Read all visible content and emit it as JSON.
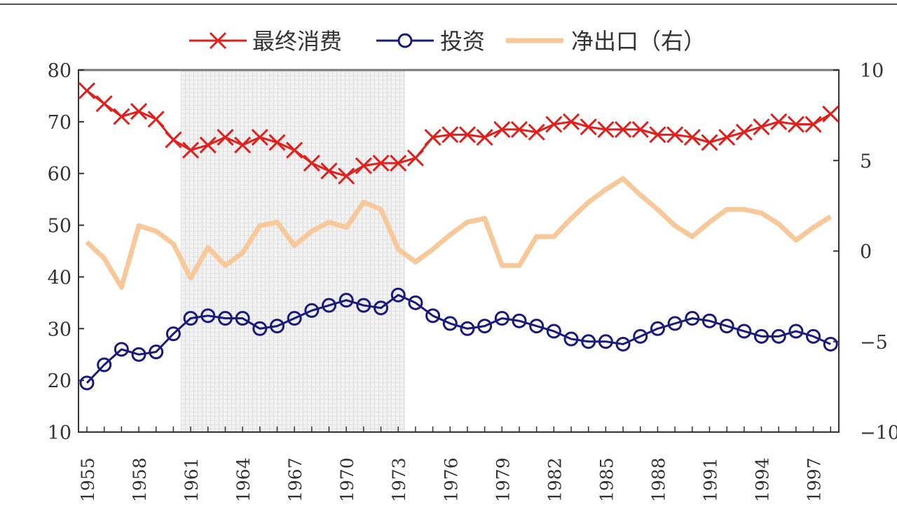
{
  "chart_data": {
    "type": "line",
    "title": "",
    "x": [
      1955,
      1956,
      1957,
      1958,
      1959,
      1960,
      1961,
      1962,
      1963,
      1964,
      1965,
      1966,
      1967,
      1968,
      1969,
      1970,
      1971,
      1972,
      1973,
      1974,
      1975,
      1976,
      1977,
      1978,
      1979,
      1980,
      1981,
      1982,
      1983,
      1984,
      1985,
      1986,
      1987,
      1988,
      1989,
      1990,
      1991,
      1992,
      1993,
      1994,
      1995,
      1996,
      1997,
      1998
    ],
    "x_tick_labels": [
      "1955",
      "1958",
      "1961",
      "1964",
      "1967",
      "1970",
      "1973",
      "1976",
      "1979",
      "1982",
      "1985",
      "1988",
      "1991",
      "1994",
      "1997"
    ],
    "y_left": {
      "range": [
        10,
        80
      ],
      "ticks": [
        "10",
        "20",
        "30",
        "40",
        "50",
        "60",
        "70",
        "80"
      ]
    },
    "y_right": {
      "range": [
        -10,
        10
      ],
      "ticks": [
        "-10",
        "-5",
        "0",
        "5",
        "10"
      ]
    },
    "shaded_period": [
      1961,
      1973.5
    ],
    "legend_placement": "top",
    "grid": false,
    "series": [
      {
        "name": "最终消费",
        "axis": "left",
        "marker": "x",
        "color": "#e0201c",
        "values": [
          76,
          73.5,
          71,
          72,
          70.5,
          66.5,
          64.5,
          65.5,
          67,
          65.5,
          67,
          66,
          64.5,
          62,
          60.5,
          59.5,
          61.5,
          62,
          62,
          63,
          67,
          67.5,
          67.5,
          67,
          68.5,
          68.5,
          68,
          69.5,
          70,
          69,
          68.5,
          68.5,
          68.5,
          67.5,
          67.5,
          67,
          66,
          67,
          68,
          69,
          70,
          69.5,
          69.5,
          71.5
        ]
      },
      {
        "name": "投资",
        "axis": "left",
        "marker": "circle",
        "color": "#1a1a7a",
        "values": [
          19.5,
          23,
          26,
          25,
          25.5,
          29,
          32,
          32.5,
          32,
          32,
          30,
          30.5,
          32,
          33.5,
          34.5,
          35.5,
          34.5,
          34,
          36.5,
          35,
          32.5,
          31,
          30,
          30.5,
          32,
          31.5,
          30.5,
          29.5,
          28,
          27.5,
          27.5,
          27,
          28.5,
          30,
          31,
          32,
          31.5,
          30.5,
          29.5,
          28.5,
          28.5,
          29.5,
          28.5,
          27
        ]
      },
      {
        "name": "净出口（右）",
        "axis": "right",
        "marker": "none",
        "color": "#f7c99a",
        "values": [
          0.5,
          -0.4,
          -2,
          1.4,
          1.1,
          0.4,
          -1.5,
          0.2,
          -0.8,
          -0.1,
          1.4,
          1.6,
          0.3,
          1.1,
          1.6,
          1.3,
          2.7,
          2.3,
          0.1,
          -0.6,
          0.1,
          0.9,
          1.6,
          1.8,
          -0.8,
          -0.8,
          0.8,
          0.8,
          1.8,
          2.7,
          3.4,
          4.0,
          3.1,
          2.3,
          1.4,
          0.8,
          1.6,
          2.3,
          2.3,
          2.1,
          1.5,
          0.6,
          1.3,
          1.9
        ]
      }
    ]
  }
}
